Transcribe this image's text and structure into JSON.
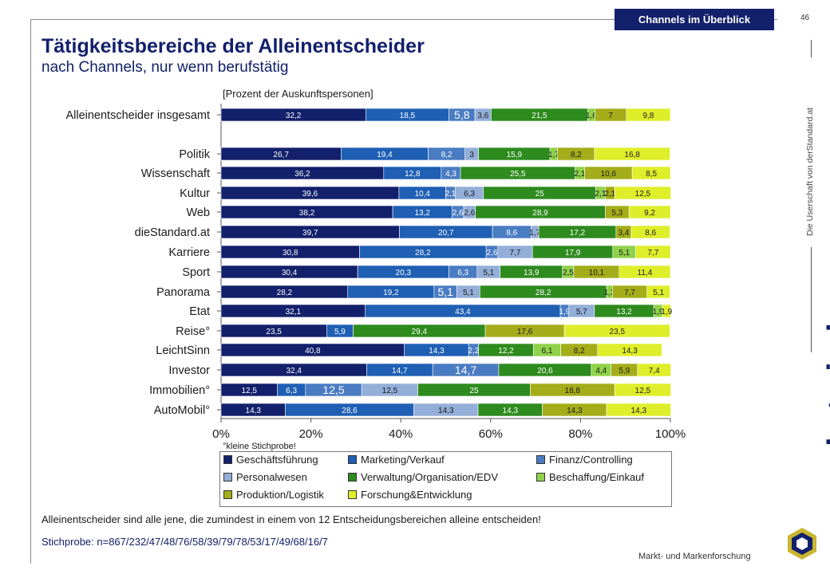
{
  "badge": "Channels im Überblick",
  "page_number": "46",
  "title": "Tätigkeitsbereiche der Alleinentscheider",
  "subtitle": "nach Channels, nur wenn berufstätig",
  "unit_label": "[Prozent der Auskunftspersonen]",
  "side_text": "Die Userschaft von derStandard.at",
  "brand": "marketmind",
  "brand_sub": "Markt- und Markenforschung",
  "small_note": "°kleine Stichprobe!",
  "note": "Alleinentscheider sind alle jene, die zumindest in einem von 12 Entscheidungsbereichen alleine entscheiden!",
  "sample": "Stichprobe:  n=867/232/47/48/76/58/39/79/78/53/17/49/68/16/7",
  "chart_data": {
    "type": "bar",
    "orientation": "horizontal-stacked-100",
    "xlim": [
      0,
      100
    ],
    "x_ticks": [
      "0%",
      "20%",
      "40%",
      "60%",
      "80%",
      "100%"
    ],
    "categories": [
      "Alleinentscheider insgesamt",
      "Politik",
      "Wissenschaft",
      "Kultur",
      "Web",
      "dieStandard.at",
      "Karriere",
      "Sport",
      "Panorama",
      "Etat",
      "Reise°",
      "LeichtSinn",
      "Investor",
      "Immobilien°",
      "AutoMobil°"
    ],
    "series": [
      {
        "name": "Geschäftsführung",
        "color": "#13206b",
        "values": [
          32.2,
          26.7,
          36.2,
          39.6,
          38.2,
          39.7,
          30.8,
          30.4,
          28.2,
          32.1,
          23.5,
          40.8,
          32.4,
          12.5,
          14.3
        ]
      },
      {
        "name": "Marketing/Verkauf",
        "color": "#1f5fb4",
        "values": [
          18.5,
          19.4,
          12.8,
          10.4,
          13.2,
          20.7,
          28.2,
          20.3,
          19.2,
          43.4,
          5.9,
          14.3,
          14.7,
          6.3,
          28.6
        ]
      },
      {
        "name": "Finanz/Controlling",
        "color": "#4a7cc2",
        "values": [
          5.8,
          8.2,
          4.3,
          2.1,
          2.6,
          8.6,
          2.6,
          6.3,
          5.1,
          1.9,
          0,
          2.2,
          14.7,
          12.5,
          0
        ]
      },
      {
        "name": "Personalwesen",
        "color": "#93aed8",
        "values": [
          3.6,
          3,
          0,
          6.3,
          2.6,
          1.7,
          7.7,
          5.1,
          5.1,
          5.7,
          0,
          0,
          0,
          12.5,
          14.3
        ]
      },
      {
        "name": "Verwaltung/Organisation/EDV",
        "color": "#2e8b1e",
        "values": [
          21.5,
          15.9,
          25.5,
          25,
          28.9,
          17.2,
          17.9,
          13.9,
          28.2,
          13.2,
          29.4,
          12.2,
          20.6,
          25,
          14.3
        ]
      },
      {
        "name": "Beschaffung/Einkauf",
        "color": "#8fd14a",
        "values": [
          1.6,
          1.7,
          2.1,
          2.1,
          0,
          0,
          5.1,
          2.5,
          1.3,
          1.9,
          0,
          6.1,
          4.4,
          0,
          0
        ]
      },
      {
        "name": "Produktion/Logistik",
        "color": "#a4ad19",
        "values": [
          7,
          8.2,
          10.6,
          2.1,
          5.3,
          3.4,
          0,
          10.1,
          7.7,
          0,
          17.6,
          8.2,
          5.9,
          18.8,
          14.3
        ]
      },
      {
        "name": "Forschung&Entwicklung",
        "color": "#dfee2a",
        "values": [
          9.8,
          16.8,
          8.5,
          12.5,
          9.2,
          8.6,
          7.7,
          11.4,
          5.1,
          1.9,
          23.5,
          14.3,
          7.4,
          12.5,
          14.3
        ]
      }
    ],
    "value_labels": [
      [
        "32,2",
        "18,5",
        "5,8",
        "3,6",
        "21,5",
        "1,6",
        "7",
        "9,8"
      ],
      [
        "26,7",
        "19,4",
        "8,2",
        "3",
        "15,9",
        "1,7",
        "8,2",
        "16,8"
      ],
      [
        "36,2",
        "12,8",
        "4,3",
        "",
        "25,5",
        "2,1",
        "10,6",
        "8,5"
      ],
      [
        "39,6",
        "10,4",
        "2,1",
        "6,3",
        "25",
        "2,1",
        "2,1",
        "12,5"
      ],
      [
        "38,2",
        "13,2",
        "2,6",
        "2,6",
        "28,9",
        "",
        "5,3",
        "9,2"
      ],
      [
        "39,7",
        "20,7",
        "8,6",
        "1,7",
        "17,2",
        "",
        "3,4",
        "8,6"
      ],
      [
        "30,8",
        "28,2",
        "2,6",
        "7,7",
        "17,9",
        "5,1",
        "",
        "7,7"
      ],
      [
        "30,4",
        "20,3",
        "6,3",
        "5,1",
        "13,9",
        "2,5",
        "10,1",
        "11,4"
      ],
      [
        "28,2",
        "19,2",
        "5,1",
        "5,1",
        "28,2",
        "1,3",
        "7,7",
        "5,1"
      ],
      [
        "32,1",
        "43,4",
        "1,9",
        "5,7",
        "13,2",
        "1,9",
        "",
        "1,9"
      ],
      [
        "23,5",
        "5,9",
        "",
        "",
        "29,4",
        "",
        "17,6",
        "23,5"
      ],
      [
        "40,8",
        "14,3",
        "2,2",
        "",
        "12,2",
        "6,1",
        "8,2",
        "14,3"
      ],
      [
        "32,4",
        "14,7",
        "14,7",
        "",
        "20,6",
        "4,4",
        "5,9",
        "7,4"
      ],
      [
        "12,5",
        "6,3",
        "12,5",
        "12,5",
        "25",
        "",
        "18,8",
        "12,5"
      ],
      [
        "14,3",
        "28,6",
        "",
        "14,3",
        "14,3",
        "",
        "14,3",
        "14,3"
      ]
    ],
    "grid": false,
    "legend_position": "bottom"
  }
}
